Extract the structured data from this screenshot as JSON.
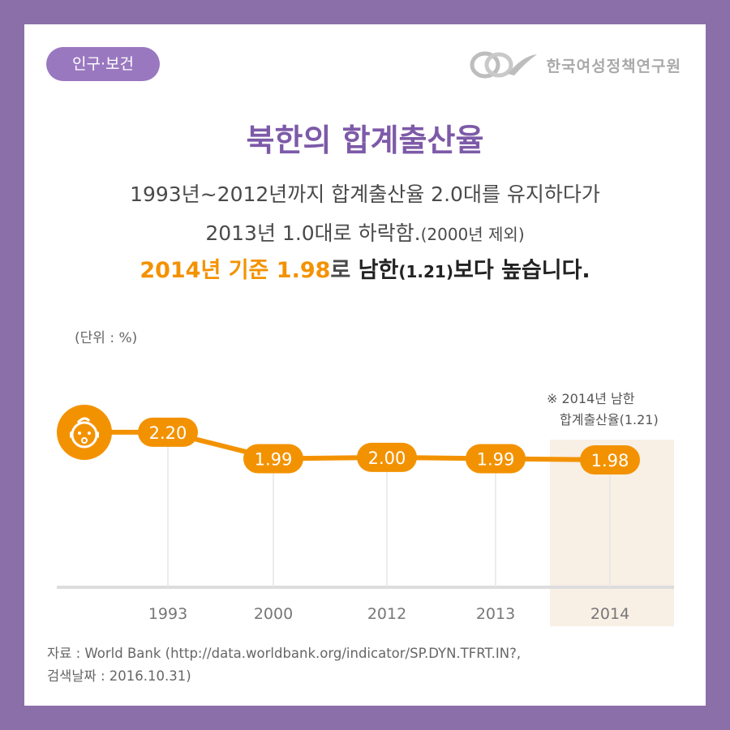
{
  "header": {
    "tag": "인구·보건",
    "brand": "한국여성정책연구원"
  },
  "title": "북한의 합계출산율",
  "subtitle": {
    "line1": "1993년~2012년까지 합계출산율 2.0대를 유지하다가",
    "line2_main": "2013년 1.0대로 하락함.",
    "line2_note": "(2000년 제외)",
    "line3_highlight": "2014년 기준 1.98",
    "line3_ro": "로 ",
    "line3_bold1": "남한",
    "line3_paren": "(1.21)",
    "line3_bold2": "보다 높습니다."
  },
  "unit_label": "(단위 : %)",
  "chart_data": {
    "type": "line",
    "categories": [
      "1993",
      "2000",
      "2012",
      "2013",
      "2014"
    ],
    "values": [
      2.2,
      1.99,
      2.0,
      1.99,
      1.98
    ],
    "value_labels": [
      "2.20",
      "1.99",
      "2.00",
      "1.99",
      "1.98"
    ],
    "highlight_category": "2014",
    "annotation": {
      "line1": "※ 2014년 남한",
      "line2": "합계출산율(1.21)"
    },
    "colors": {
      "line": "#f39200",
      "highlight_band": "#f8efe5",
      "axis": "#dddddd",
      "guide": "#e6e6e6",
      "tick_text": "#777777"
    }
  },
  "source": {
    "line1": "자료 : World Bank (http://data.worldbank.org/indicator/SP.DYN.TFRT.IN?,",
    "line2": "검색날짜 : 2016.10.31)"
  },
  "icons": {
    "baby": "baby-face-icon",
    "logo": "kwdi-logo-icon"
  }
}
